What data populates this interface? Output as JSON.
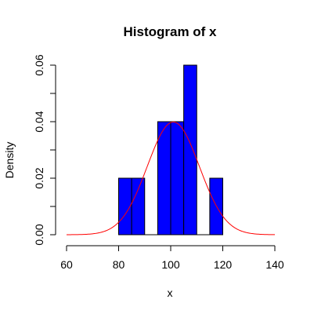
{
  "chart_data": {
    "type": "bar",
    "title": "Histogram of x",
    "xlabel": "x",
    "ylabel": "Density",
    "xlim": [
      60,
      140
    ],
    "ylim": [
      0,
      0.06
    ],
    "x_ticks": [
      60,
      80,
      100,
      120,
      140
    ],
    "x_tick_labels": [
      "60",
      "80",
      "100",
      "120",
      "140"
    ],
    "y_ticks": [
      0.0,
      0.02,
      0.04,
      0.06
    ],
    "y_tick_labels": [
      "0.00",
      "0.02",
      "0.04",
      "0.06"
    ],
    "y_minor_ticks": [
      0.01,
      0.03,
      0.05
    ],
    "bins": [
      {
        "x0": 80,
        "x1": 85,
        "density": 0.02
      },
      {
        "x0": 85,
        "x1": 90,
        "density": 0.02
      },
      {
        "x0": 90,
        "x1": 95,
        "density": 0
      },
      {
        "x0": 95,
        "x1": 100,
        "density": 0.04
      },
      {
        "x0": 100,
        "x1": 105,
        "density": 0.04
      },
      {
        "x0": 105,
        "x1": 110,
        "density": 0.06
      },
      {
        "x0": 110,
        "x1": 115,
        "density": 0
      },
      {
        "x0": 115,
        "x1": 120,
        "density": 0.02
      }
    ],
    "density_curve": {
      "type": "normal",
      "mean": 101,
      "sd": 10,
      "x_range": [
        60,
        140
      ]
    },
    "colors": {
      "bars": "#0000ff",
      "bar_border": "#000000",
      "curve": "#ff0000"
    },
    "grid": false,
    "legend": "none"
  }
}
